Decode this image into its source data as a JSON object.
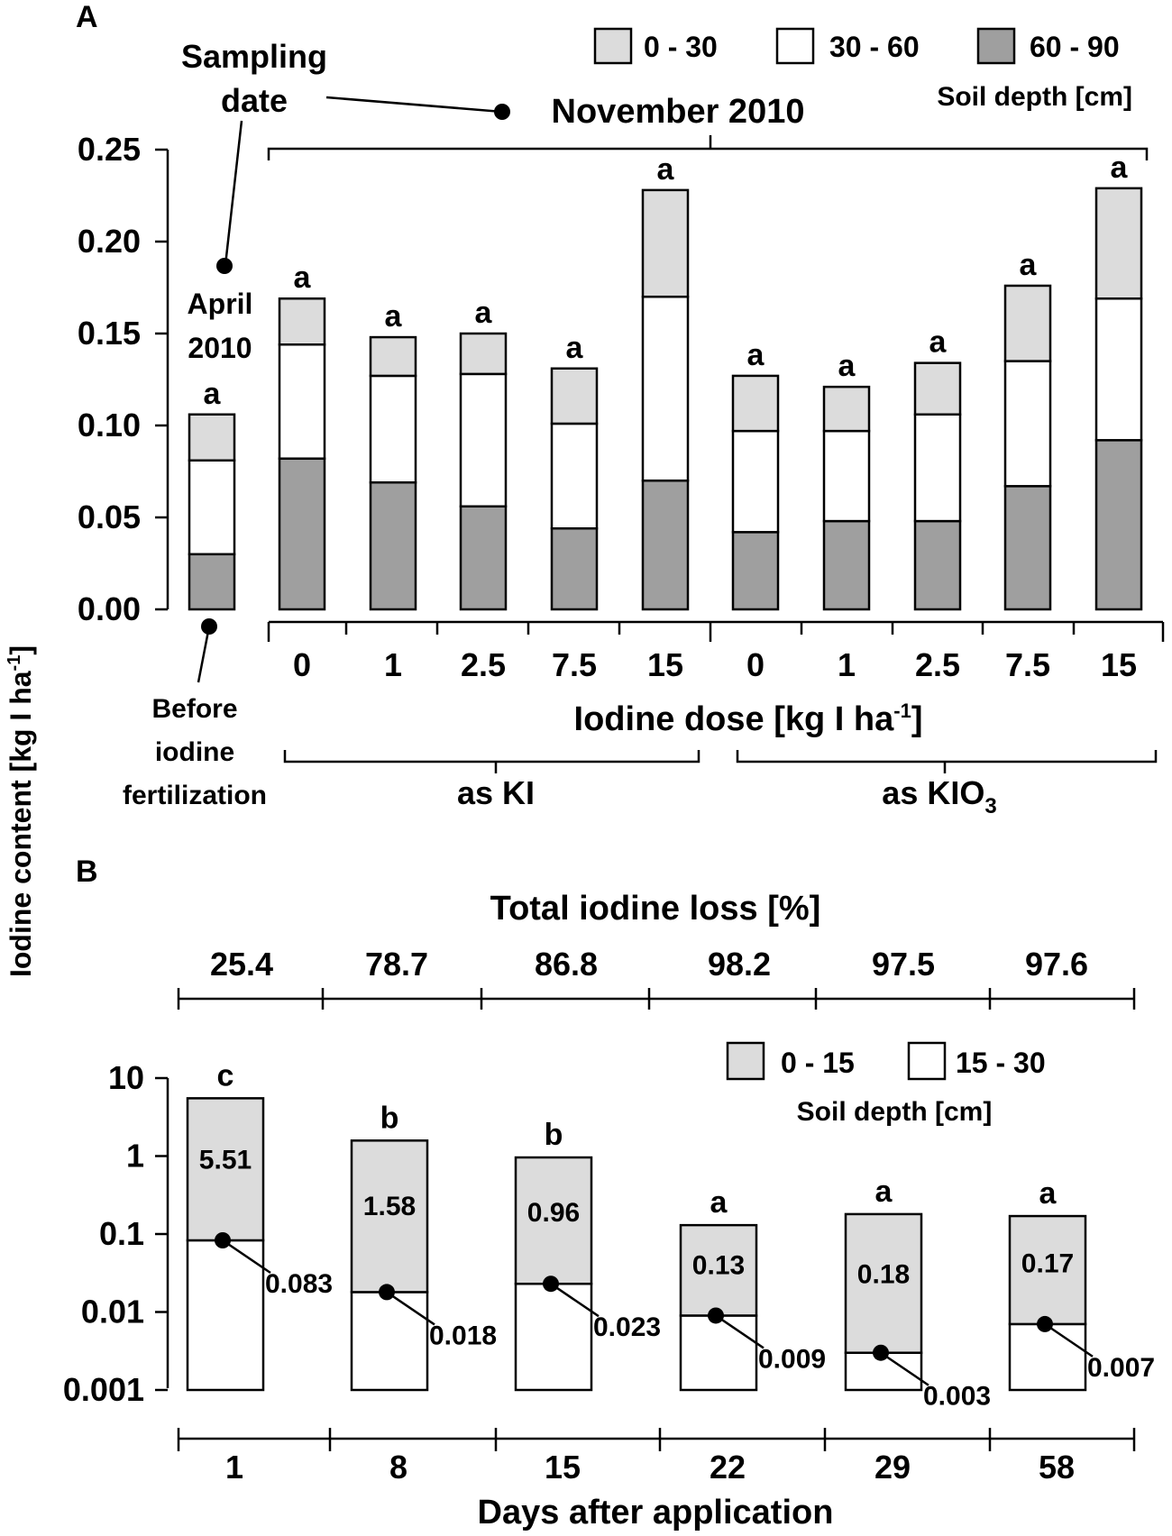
{
  "y_axis_label": "Iodine content [kg I ha",
  "y_axis_label_sup": "-1",
  "y_axis_label_end": "]",
  "chart_data": [
    {
      "panel": "A",
      "type": "bar",
      "stacked": true,
      "panel_label": "A",
      "legend": {
        "entries": [
          "0 - 30",
          "30 - 60",
          "60 - 90"
        ],
        "title": "Soil depth [cm]",
        "placement": "top-right"
      },
      "sampling_date_label_line1": "Sampling",
      "sampling_date_label_line2": "date",
      "november_label": "November 2010",
      "april_label_line1": "April",
      "april_label_line2": "2010",
      "before_label": [
        "Before",
        "iodine",
        "fertilization"
      ],
      "xlabel": "Iodine dose [kg I ha",
      "xlabel_sup": "-1",
      "xlabel_end": "]",
      "group_ki": "as KI",
      "group_kio3": "as KIO",
      "group_kio3_sub": "3",
      "ylim": [
        0,
        0.25
      ],
      "yticks": [
        "0.00",
        "0.05",
        "0.10",
        "0.15",
        "0.20",
        "0.25"
      ],
      "ytick_values": [
        0,
        0.05,
        0.1,
        0.15,
        0.2,
        0.25
      ],
      "colors": {
        "0-30": "#dcdcdc",
        "30-60": "#ffffff",
        "60-90": "#9f9f9f"
      },
      "bars": [
        {
          "category": "",
          "group": "before",
          "d60_90": 0.03,
          "d30_60": 0.051,
          "d0_30": 0.025,
          "letter": "a"
        },
        {
          "category": "0",
          "group": "KI",
          "d60_90": 0.082,
          "d30_60": 0.062,
          "d0_30": 0.025,
          "letter": "a"
        },
        {
          "category": "1",
          "group": "KI",
          "d60_90": 0.069,
          "d30_60": 0.058,
          "d0_30": 0.021,
          "letter": "a"
        },
        {
          "category": "2.5",
          "group": "KI",
          "d60_90": 0.056,
          "d30_60": 0.072,
          "d0_30": 0.022,
          "letter": "a"
        },
        {
          "category": "7.5",
          "group": "KI",
          "d60_90": 0.044,
          "d30_60": 0.057,
          "d0_30": 0.03,
          "letter": "a"
        },
        {
          "category": "15",
          "group": "KI",
          "d60_90": 0.07,
          "d30_60": 0.1,
          "d0_30": 0.058,
          "letter": "a"
        },
        {
          "category": "0",
          "group": "KIO3",
          "d60_90": 0.042,
          "d30_60": 0.055,
          "d0_30": 0.03,
          "letter": "a"
        },
        {
          "category": "1",
          "group": "KIO3",
          "d60_90": 0.048,
          "d30_60": 0.049,
          "d0_30": 0.024,
          "letter": "a"
        },
        {
          "category": "2.5",
          "group": "KIO3",
          "d60_90": 0.048,
          "d30_60": 0.058,
          "d0_30": 0.028,
          "letter": "a"
        },
        {
          "category": "7.5",
          "group": "KIO3",
          "d60_90": 0.067,
          "d30_60": 0.068,
          "d0_30": 0.041,
          "letter": "a"
        },
        {
          "category": "15",
          "group": "KIO3",
          "d60_90": 0.092,
          "d30_60": 0.077,
          "d0_30": 0.06,
          "letter": "a"
        }
      ]
    },
    {
      "panel": "B",
      "type": "bar",
      "stacked": true,
      "yscale": "log",
      "panel_label": "B",
      "total_loss_title": "Total iodine loss [%]",
      "total_loss": [
        "25.4",
        "78.7",
        "86.8",
        "98.2",
        "97.5",
        "97.6"
      ],
      "legend": {
        "entries": [
          "0 - 15",
          "15 - 30"
        ],
        "title": "Soil depth [cm]",
        "placement": "top-right"
      },
      "xlabel": "Days after application",
      "ylim": [
        0.001,
        10
      ],
      "yticks": [
        "10",
        "1",
        "0.1",
        "0.01",
        "0.001"
      ],
      "ytick_values": [
        10,
        1,
        0.1,
        0.01,
        0.001
      ],
      "colors": {
        "0-15": "#dcdcdc",
        "15-30": "#ffffff"
      },
      "categories": [
        "1",
        "8",
        "15",
        "22",
        "29",
        "58"
      ],
      "values_0_15": [
        5.51,
        1.58,
        0.96,
        0.13,
        0.18,
        0.17
      ],
      "values_0_15_labels": [
        "5.51",
        "1.58",
        "0.96",
        "0.13",
        "0.18",
        "0.17"
      ],
      "values_15_30": [
        0.083,
        0.018,
        0.023,
        0.009,
        0.003,
        0.007
      ],
      "values_15_30_labels": [
        "0.083",
        "0.018",
        "0.023",
        "0.009",
        "0.003",
        "0.007"
      ],
      "letters": [
        "c",
        "b",
        "b",
        "a",
        "a",
        "a"
      ]
    }
  ]
}
